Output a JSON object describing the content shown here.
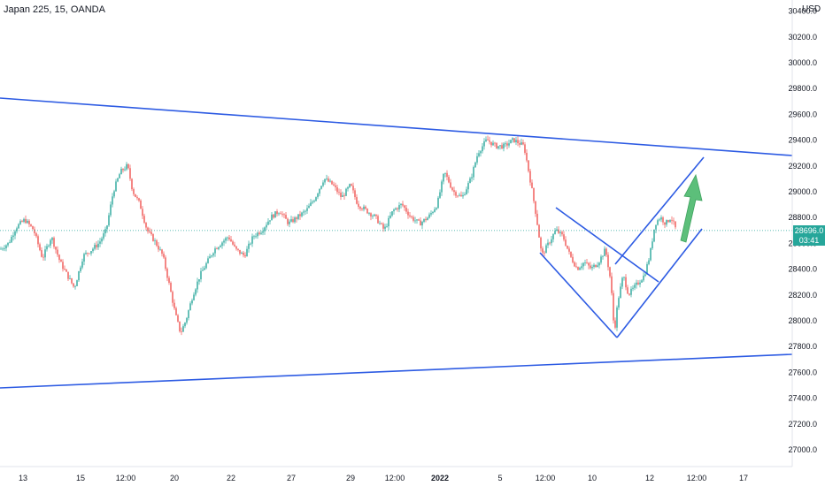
{
  "header": {
    "symbol": "Japan 225, 15, OANDA",
    "currency": "USD"
  },
  "price_tag": {
    "price": "28696.0",
    "timer": "03:41"
  },
  "colors": {
    "up_candle": "#26a69a",
    "down_candle": "#ef5350",
    "trendline": "#2d5be3",
    "arrow": "#5cbf7a",
    "last_price_line": "#26a69a"
  },
  "chart_data": {
    "type": "candlestick",
    "title": "",
    "symbol": "Japan 225",
    "interval": "15",
    "source": "OANDA",
    "currency": "USD",
    "last_price": 28696.0,
    "ylim": [
      26800,
      30400
    ],
    "y_ticks": [
      "27000.0",
      "27200.0",
      "27400.0",
      "27600.0",
      "27800.0",
      "28000.0",
      "28200.0",
      "28400.0",
      "28600.0",
      "28800.0",
      "29000.0",
      "29200.0",
      "29400.0",
      "29600.0",
      "29800.0",
      "30000.0",
      "30200.0",
      "30400.0"
    ],
    "x_ticks": [
      "13",
      "15",
      "12:00",
      "20",
      "22",
      "27",
      "29",
      "12:00",
      "2022",
      "5",
      "12:00",
      "10",
      "12",
      "12:00",
      "17"
    ],
    "price_path": [
      [
        0,
        28550
      ],
      [
        10,
        28600
      ],
      [
        18,
        28720
      ],
      [
        28,
        28780
      ],
      [
        38,
        28700
      ],
      [
        48,
        28480
      ],
      [
        58,
        28650
      ],
      [
        68,
        28450
      ],
      [
        76,
        28350
      ],
      [
        84,
        28250
      ],
      [
        94,
        28500
      ],
      [
        104,
        28550
      ],
      [
        112,
        28600
      ],
      [
        120,
        28700
      ],
      [
        128,
        29000
      ],
      [
        136,
        29150
      ],
      [
        144,
        29200
      ],
      [
        150,
        29000
      ],
      [
        158,
        28900
      ],
      [
        166,
        28700
      ],
      [
        176,
        28600
      ],
      [
        184,
        28500
      ],
      [
        192,
        28250
      ],
      [
        198,
        28050
      ],
      [
        204,
        27900
      ],
      [
        210,
        28000
      ],
      [
        218,
        28200
      ],
      [
        226,
        28350
      ],
      [
        234,
        28450
      ],
      [
        242,
        28550
      ],
      [
        250,
        28600
      ],
      [
        258,
        28650
      ],
      [
        266,
        28550
      ],
      [
        276,
        28500
      ],
      [
        286,
        28650
      ],
      [
        296,
        28700
      ],
      [
        306,
        28800
      ],
      [
        316,
        28850
      ],
      [
        326,
        28750
      ],
      [
        336,
        28800
      ],
      [
        346,
        28850
      ],
      [
        356,
        28950
      ],
      [
        366,
        29100
      ],
      [
        376,
        29050
      ],
      [
        386,
        28950
      ],
      [
        396,
        29050
      ],
      [
        404,
        28900
      ],
      [
        414,
        28850
      ],
      [
        424,
        28800
      ],
      [
        434,
        28700
      ],
      [
        444,
        28850
      ],
      [
        454,
        28900
      ],
      [
        464,
        28800
      ],
      [
        474,
        28750
      ],
      [
        484,
        28800
      ],
      [
        494,
        28900
      ],
      [
        502,
        29150
      ],
      [
        512,
        29000
      ],
      [
        522,
        28950
      ],
      [
        532,
        29100
      ],
      [
        540,
        29300
      ],
      [
        550,
        29400
      ],
      [
        560,
        29350
      ],
      [
        570,
        29350
      ],
      [
        580,
        29400
      ],
      [
        592,
        29350
      ],
      [
        600,
        29050
      ],
      [
        606,
        28800
      ],
      [
        612,
        28500
      ],
      [
        620,
        28600
      ],
      [
        628,
        28700
      ],
      [
        636,
        28650
      ],
      [
        644,
        28500
      ],
      [
        652,
        28400
      ],
      [
        660,
        28450
      ],
      [
        668,
        28400
      ],
      [
        676,
        28450
      ],
      [
        684,
        28550
      ],
      [
        690,
        28300
      ],
      [
        694,
        27900
      ],
      [
        698,
        28150
      ],
      [
        704,
        28350
      ],
      [
        710,
        28200
      ],
      [
        716,
        28250
      ],
      [
        722,
        28300
      ],
      [
        728,
        28350
      ],
      [
        734,
        28500
      ],
      [
        740,
        28750
      ],
      [
        746,
        28800
      ],
      [
        752,
        28750
      ],
      [
        758,
        28800
      ],
      [
        764,
        28696
      ]
    ],
    "annotations": [
      {
        "type": "trendline",
        "from": [
          "13 09:00",
          29730
        ],
        "to": [
          "17 18:00",
          29300
        ]
      },
      {
        "type": "trendline",
        "from": [
          "13 09:00",
          27470
        ],
        "to": [
          "17 18:00",
          27730
        ]
      },
      {
        "type": "channel",
        "label": "falling wedge"
      },
      {
        "type": "channel",
        "label": "rising channel"
      },
      {
        "type": "arrow",
        "direction": "up"
      }
    ],
    "grid": false
  }
}
